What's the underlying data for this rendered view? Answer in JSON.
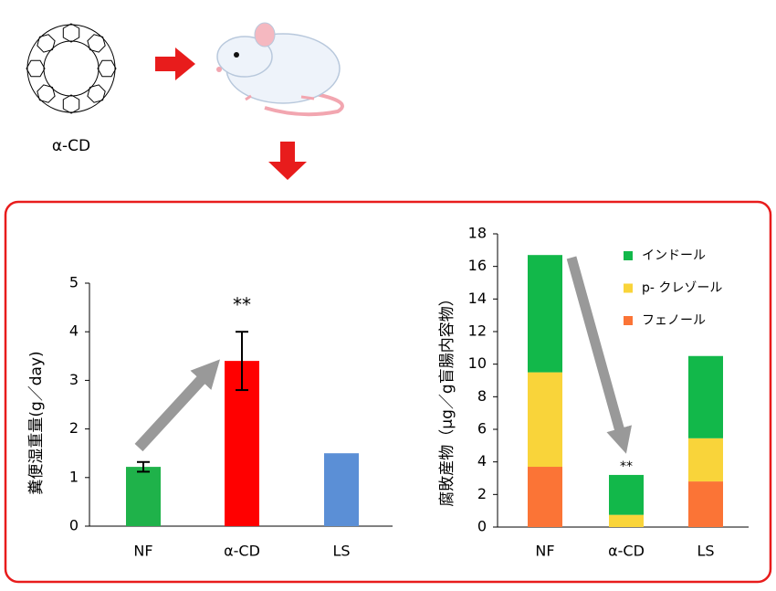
{
  "diagram": {
    "molecule_label": "α-CD"
  },
  "chart_data": [
    {
      "type": "bar",
      "y_label": "糞便湿重量(g／day)",
      "categories": [
        "NF",
        "α-CD",
        "LS"
      ],
      "values": [
        1.22,
        3.4,
        1.5
      ],
      "errors": [
        0.1,
        0.6,
        null
      ],
      "colors": [
        "#1fb24a",
        "#ff0000",
        "#5b8fd6"
      ],
      "ylim": [
        0,
        5
      ],
      "yticks": [
        0,
        1,
        2,
        3,
        4,
        5
      ],
      "annotation": "**"
    },
    {
      "type": "stacked_bar",
      "y_label": "腐敗産物（μg／g盲腸内容物）",
      "categories": [
        "NF",
        "α-CD",
        "LS"
      ],
      "series": [
        {
          "name": "フェノール",
          "color": "#fb7436",
          "values": [
            3.7,
            0,
            2.8
          ]
        },
        {
          "name": "p- クレゾール",
          "color": "#f9d43a",
          "values": [
            5.8,
            0.75,
            2.65
          ]
        },
        {
          "name": "インドール",
          "color": "#12b84a",
          "values": [
            7.2,
            2.45,
            5.05
          ]
        }
      ],
      "ylim": [
        0,
        18
      ],
      "yticks": [
        0,
        2,
        4,
        6,
        8,
        10,
        12,
        14,
        16,
        18
      ],
      "annotation": "**"
    }
  ]
}
